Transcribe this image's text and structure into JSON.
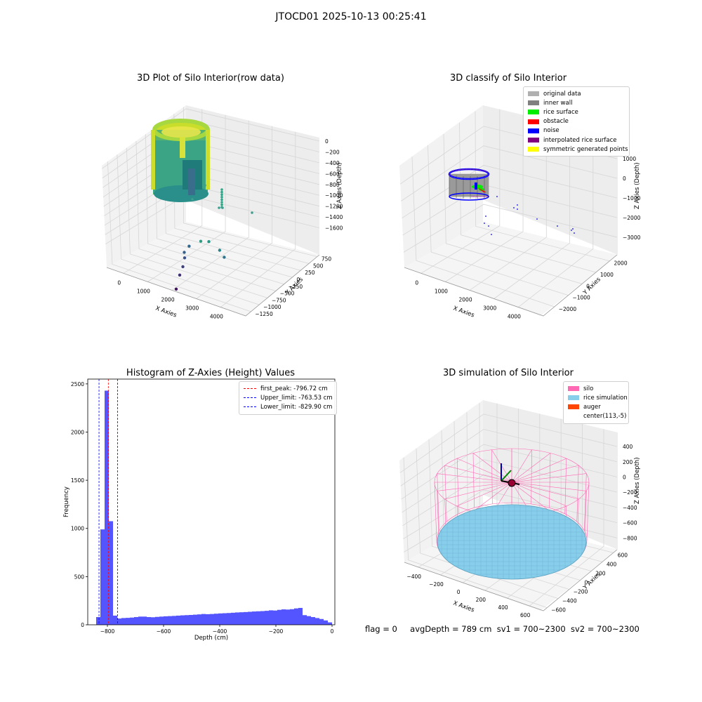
{
  "figure_title": "JTOCD01 2025-10-13 00:25:41",
  "colors": {
    "original_data": "#b0b0b0",
    "inner_wall": "#808080",
    "rice_surface": "#00ee00",
    "obstacle": "#ff0000",
    "noise": "#0000ff",
    "interpolated": "#800080",
    "symmetric": "#ffff00",
    "silo": "#ff69b4",
    "rice_simulation": "#87ceeb",
    "auger": "#ff4500",
    "hist_bar": "#5555ff"
  },
  "panel1": {
    "title": "3D Plot of Silo Interior(row data)",
    "xlabel": "X Axies",
    "ylabel": "Y Axies",
    "zlabel": "Z Axies (Depth)",
    "xticks": [
      "0",
      "1000",
      "2000",
      "3000",
      "4000"
    ],
    "yticks": [
      "750",
      "500",
      "250",
      "0",
      "−250",
      "−500",
      "−750",
      "−1000",
      "−1250"
    ],
    "zticks": [
      "0",
      "−200",
      "−400",
      "−600",
      "−800",
      "−1000",
      "−1200",
      "−1400",
      "−1600"
    ]
  },
  "panel2": {
    "title": "3D classify of Silo Interior",
    "xlabel": "X Axies",
    "ylabel": "Y Axies",
    "zlabel": "Z Axies (Depth)",
    "xticks": [
      "0",
      "1000",
      "2000",
      "3000",
      "4000"
    ],
    "yticks": [
      "2000",
      "1000",
      "0",
      "−1000",
      "−2000"
    ],
    "zticks": [
      "1000",
      "0",
      "−1000",
      "−2000",
      "−3000"
    ],
    "legend": [
      "original data",
      "inner wall",
      "rice surface",
      "obstacle",
      "noise",
      "interpolated rice surface",
      "symmetric generated points"
    ]
  },
  "panel3": {
    "title": "Histogram of Z-Axies (Height) Values",
    "xlabel": "Depth (cm)",
    "ylabel": "Frequency",
    "legend": [
      "first_peak: -796.72 cm",
      "Upper_limit: -763.53 cm",
      "Lower_limit: -829.90 cm"
    ]
  },
  "panel4": {
    "title": "3D simulation of Silo Interior",
    "xlabel": "X Axies",
    "ylabel": "Y Axies",
    "zlabel": "Z Axies (Depth)",
    "xticks": [
      "−400",
      "−200",
      "0",
      "200",
      "400",
      "600"
    ],
    "yticks": [
      "600",
      "400",
      "200",
      "0",
      "−200",
      "−400",
      "−600"
    ],
    "zticks": [
      "400",
      "200",
      "0",
      "−200",
      "−400",
      "−600",
      "−800"
    ],
    "legend": [
      "silo",
      "rice simulation",
      "auger",
      "center(113,-5)"
    ]
  },
  "status": {
    "flag": "flag = 0",
    "avg_depth": "avgDepth = 789 cm",
    "sv1": "sv1 = 700~2300",
    "sv2": "sv2 = 700~2300"
  },
  "chart_data": [
    {
      "type": "scatter",
      "title": "3D Plot of Silo Interior(row data)",
      "xlabel": "X Axies",
      "ylabel": "Y Axies",
      "zlabel": "Z Axies (Depth)",
      "xlim": [
        -500,
        4500
      ],
      "ylim": [
        -1300,
        800
      ],
      "zlim": [
        -1700,
        100
      ],
      "colormap": "viridis (by depth)",
      "points": [
        {
          "x": 2000,
          "y": 0,
          "z": -1600
        },
        {
          "x": 2000,
          "y": -100,
          "z": -1450
        },
        {
          "x": 2050,
          "y": -150,
          "z": -1350
        },
        {
          "x": 2050,
          "y": -200,
          "z": -1250
        },
        {
          "x": 2100,
          "y": -150,
          "z": -1150
        },
        {
          "x": 2150,
          "y": -250,
          "z": -1100
        },
        {
          "x": 3200,
          "y": 250,
          "z": -700
        },
        {
          "x": 3300,
          "y": 100,
          "z": -750
        },
        {
          "x": 3500,
          "y": -50,
          "z": -900
        },
        {
          "x": 3600,
          "y": -100,
          "z": -1000
        }
      ]
    },
    {
      "type": "scatter",
      "title": "3D classify of Silo Interior",
      "xlabel": "X Axies",
      "ylabel": "Y Axies",
      "zlabel": "Z Axies (Depth)",
      "xlim": [
        -500,
        4500
      ],
      "ylim": [
        -2500,
        2500
      ],
      "zlim": [
        -3000,
        1000
      ],
      "series": [
        {
          "name": "original data"
        },
        {
          "name": "inner wall"
        },
        {
          "name": "rice surface"
        },
        {
          "name": "obstacle"
        },
        {
          "name": "noise"
        },
        {
          "name": "interpolated rice surface"
        },
        {
          "name": "symmetric generated points"
        }
      ],
      "legend_loc": "upper right"
    },
    {
      "type": "bar",
      "title": "Histogram of Z-Axies (Height) Values",
      "xlabel": "Depth (cm)",
      "ylabel": "Frequency",
      "xlim": [
        -870,
        10
      ],
      "ylim": [
        0,
        2550
      ],
      "bin_width": 15,
      "bins": [
        {
          "x0": -840,
          "value": 80
        },
        {
          "x0": -825,
          "value": 990
        },
        {
          "x0": -810,
          "value": 2430
        },
        {
          "x0": -795,
          "value": 1075
        },
        {
          "x0": -780,
          "value": 95
        },
        {
          "x0": -765,
          "value": 65
        },
        {
          "x0": -750,
          "value": 70
        },
        {
          "x0": -735,
          "value": 72
        },
        {
          "x0": -720,
          "value": 75
        },
        {
          "x0": -705,
          "value": 80
        },
        {
          "x0": -690,
          "value": 85
        },
        {
          "x0": -675,
          "value": 85
        },
        {
          "x0": -660,
          "value": 80
        },
        {
          "x0": -645,
          "value": 78
        },
        {
          "x0": -630,
          "value": 82
        },
        {
          "x0": -615,
          "value": 85
        },
        {
          "x0": -600,
          "value": 88
        },
        {
          "x0": -585,
          "value": 90
        },
        {
          "x0": -570,
          "value": 92
        },
        {
          "x0": -555,
          "value": 95
        },
        {
          "x0": -540,
          "value": 98
        },
        {
          "x0": -525,
          "value": 100
        },
        {
          "x0": -510,
          "value": 102
        },
        {
          "x0": -495,
          "value": 105
        },
        {
          "x0": -480,
          "value": 108
        },
        {
          "x0": -465,
          "value": 112
        },
        {
          "x0": -450,
          "value": 110
        },
        {
          "x0": -435,
          "value": 112
        },
        {
          "x0": -420,
          "value": 115
        },
        {
          "x0": -405,
          "value": 118
        },
        {
          "x0": -390,
          "value": 120
        },
        {
          "x0": -375,
          "value": 122
        },
        {
          "x0": -360,
          "value": 125
        },
        {
          "x0": -345,
          "value": 128
        },
        {
          "x0": -330,
          "value": 130
        },
        {
          "x0": -315,
          "value": 132
        },
        {
          "x0": -300,
          "value": 135
        },
        {
          "x0": -285,
          "value": 138
        },
        {
          "x0": -270,
          "value": 140
        },
        {
          "x0": -255,
          "value": 142
        },
        {
          "x0": -240,
          "value": 145
        },
        {
          "x0": -225,
          "value": 150
        },
        {
          "x0": -210,
          "value": 148
        },
        {
          "x0": -195,
          "value": 155
        },
        {
          "x0": -180,
          "value": 160
        },
        {
          "x0": -165,
          "value": 158
        },
        {
          "x0": -150,
          "value": 162
        },
        {
          "x0": -135,
          "value": 170
        },
        {
          "x0": -120,
          "value": 175
        },
        {
          "x0": -105,
          "value": 100
        },
        {
          "x0": -90,
          "value": 90
        },
        {
          "x0": -75,
          "value": 80
        },
        {
          "x0": -60,
          "value": 70
        },
        {
          "x0": -45,
          "value": 60
        },
        {
          "x0": -30,
          "value": 45
        },
        {
          "x0": -15,
          "value": 25
        }
      ],
      "xticks": [
        -800,
        -600,
        -400,
        -200,
        0
      ],
      "yticks": [
        0,
        500,
        1000,
        1500,
        2000,
        2500
      ],
      "vlines": [
        {
          "name": "first_peak",
          "x": -796.72,
          "color": "#ff0000"
        },
        {
          "name": "Upper_limit",
          "x": -763.53,
          "color": "#0000ff"
        },
        {
          "name": "Lower_limit",
          "x": -829.9,
          "color": "#0000ff"
        }
      ],
      "legend_loc": "upper right"
    },
    {
      "type": "scatter",
      "title": "3D simulation of Silo Interior",
      "xlabel": "X Axies",
      "ylabel": "Y Axies",
      "zlabel": "Z Axies (Depth)",
      "xlim": [
        -500,
        700
      ],
      "ylim": [
        -700,
        700
      ],
      "zlim": [
        -900,
        500
      ],
      "series": [
        {
          "name": "silo"
        },
        {
          "name": "rice simulation"
        },
        {
          "name": "auger"
        },
        {
          "name": "center(113,-5)"
        }
      ],
      "legend_loc": "upper right"
    }
  ]
}
